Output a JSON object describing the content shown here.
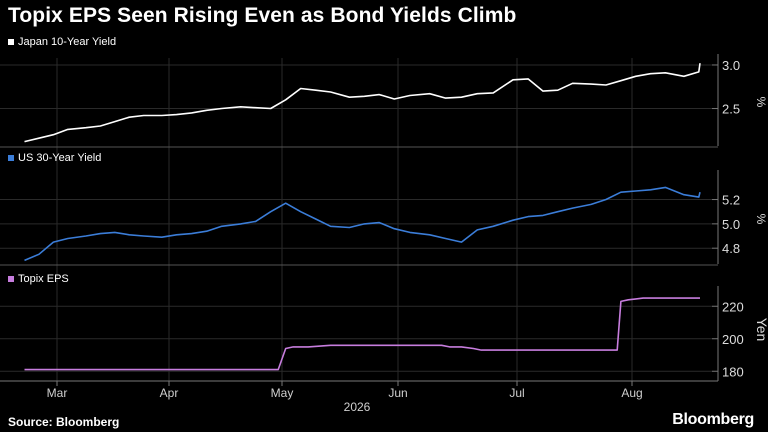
{
  "title": "Topix EPS Seen Rising Even as Bond Yields Climb",
  "source": "Source: Bloomberg",
  "brand": "Bloomberg",
  "x_axis": {
    "months": [
      "Mar",
      "Apr",
      "May",
      "Jun",
      "Jul",
      "Aug"
    ],
    "year_label": "2026"
  },
  "chart_data": [
    {
      "type": "line",
      "legend": "Japan 10-Year Yield",
      "color": "#ffffff",
      "unit_label": "%",
      "x_range": [
        "2026-02-20",
        "2026-08-24"
      ],
      "ylim": [
        2.07,
        3.08
      ],
      "yticks": [
        "3.0",
        "2.5"
      ],
      "grid": true,
      "x": [
        "2026-02-20",
        "2026-02-24",
        "2026-02-28",
        "2026-03-04",
        "2026-03-09",
        "2026-03-13",
        "2026-03-17",
        "2026-03-21",
        "2026-03-25",
        "2026-03-30",
        "2026-04-03",
        "2026-04-07",
        "2026-04-11",
        "2026-04-15",
        "2026-04-20",
        "2026-04-24",
        "2026-04-28",
        "2026-05-02",
        "2026-05-06",
        "2026-05-10",
        "2026-05-14",
        "2026-05-19",
        "2026-05-23",
        "2026-05-27",
        "2026-05-31",
        "2026-06-04",
        "2026-06-09",
        "2026-06-13",
        "2026-06-17",
        "2026-06-21",
        "2026-06-25",
        "2026-06-30",
        "2026-07-04",
        "2026-07-08",
        "2026-07-12",
        "2026-07-16",
        "2026-07-21",
        "2026-07-25",
        "2026-07-29",
        "2026-08-02",
        "2026-08-06",
        "2026-08-10",
        "2026-08-15",
        "2026-08-19",
        "2026-08-24"
      ],
      "values": [
        2.12,
        2.16,
        2.2,
        2.26,
        2.28,
        2.3,
        2.35,
        2.4,
        2.42,
        2.42,
        2.43,
        2.45,
        2.48,
        2.5,
        2.52,
        2.51,
        2.5,
        2.6,
        2.73,
        2.71,
        2.69,
        2.63,
        2.64,
        2.66,
        2.61,
        2.65,
        2.67,
        2.62,
        2.63,
        2.67,
        2.68,
        2.83,
        2.84,
        2.7,
        2.71,
        2.79,
        2.78,
        2.77,
        2.82,
        2.87,
        2.9,
        2.91,
        2.87,
        2.92,
        3.02
      ]
    },
    {
      "type": "line",
      "legend": "US 30-Year Yield",
      "color": "#3b7dd8",
      "unit_label": "%",
      "x_range": [
        "2026-02-20",
        "2026-08-24"
      ],
      "ylim": [
        4.67,
        5.41
      ],
      "yticks": [
        "5.2",
        "5.0",
        "4.8"
      ],
      "grid": true,
      "x": [
        "2026-02-20",
        "2026-02-24",
        "2026-02-28",
        "2026-03-04",
        "2026-03-09",
        "2026-03-13",
        "2026-03-17",
        "2026-03-21",
        "2026-03-25",
        "2026-03-30",
        "2026-04-03",
        "2026-04-07",
        "2026-04-11",
        "2026-04-15",
        "2026-04-20",
        "2026-04-24",
        "2026-04-28",
        "2026-05-02",
        "2026-05-06",
        "2026-05-10",
        "2026-05-14",
        "2026-05-19",
        "2026-05-23",
        "2026-05-27",
        "2026-05-31",
        "2026-06-04",
        "2026-06-09",
        "2026-06-13",
        "2026-06-17",
        "2026-06-21",
        "2026-06-25",
        "2026-06-30",
        "2026-07-04",
        "2026-07-08",
        "2026-07-12",
        "2026-07-16",
        "2026-07-21",
        "2026-07-25",
        "2026-07-29",
        "2026-08-02",
        "2026-08-06",
        "2026-08-10",
        "2026-08-15",
        "2026-08-19",
        "2026-08-24"
      ],
      "values": [
        4.7,
        4.75,
        4.85,
        4.88,
        4.9,
        4.92,
        4.93,
        4.91,
        4.9,
        4.89,
        4.91,
        4.92,
        4.94,
        4.98,
        5.0,
        5.02,
        5.1,
        5.17,
        5.1,
        5.04,
        4.98,
        4.97,
        5.0,
        5.01,
        4.96,
        4.93,
        4.91,
        4.88,
        4.85,
        4.95,
        4.98,
        5.03,
        5.06,
        5.07,
        5.1,
        5.13,
        5.16,
        5.2,
        5.26,
        5.27,
        5.28,
        5.3,
        5.24,
        5.22,
        5.26
      ]
    },
    {
      "type": "line",
      "legend": "Topix EPS",
      "color": "#c77dde",
      "unit_label": "Yen",
      "x_range": [
        "2026-02-20",
        "2026-08-24"
      ],
      "ylim": [
        174,
        230
      ],
      "yticks": [
        "220",
        "200",
        "180"
      ],
      "grid": true,
      "x": [
        "2026-02-20",
        "2026-04-30",
        "2026-05-02",
        "2026-05-04",
        "2026-05-08",
        "2026-05-14",
        "2026-05-20",
        "2026-05-28",
        "2026-06-04",
        "2026-06-12",
        "2026-06-14",
        "2026-06-17",
        "2026-06-20",
        "2026-06-22",
        "2026-06-26",
        "2026-07-15",
        "2026-07-28",
        "2026-07-29",
        "2026-07-31",
        "2026-08-04",
        "2026-08-24"
      ],
      "values": [
        181,
        181,
        194,
        195,
        195,
        196,
        196,
        196,
        196,
        196,
        195,
        195,
        194,
        193,
        193,
        193,
        193,
        223,
        224,
        225,
        225
      ]
    }
  ]
}
